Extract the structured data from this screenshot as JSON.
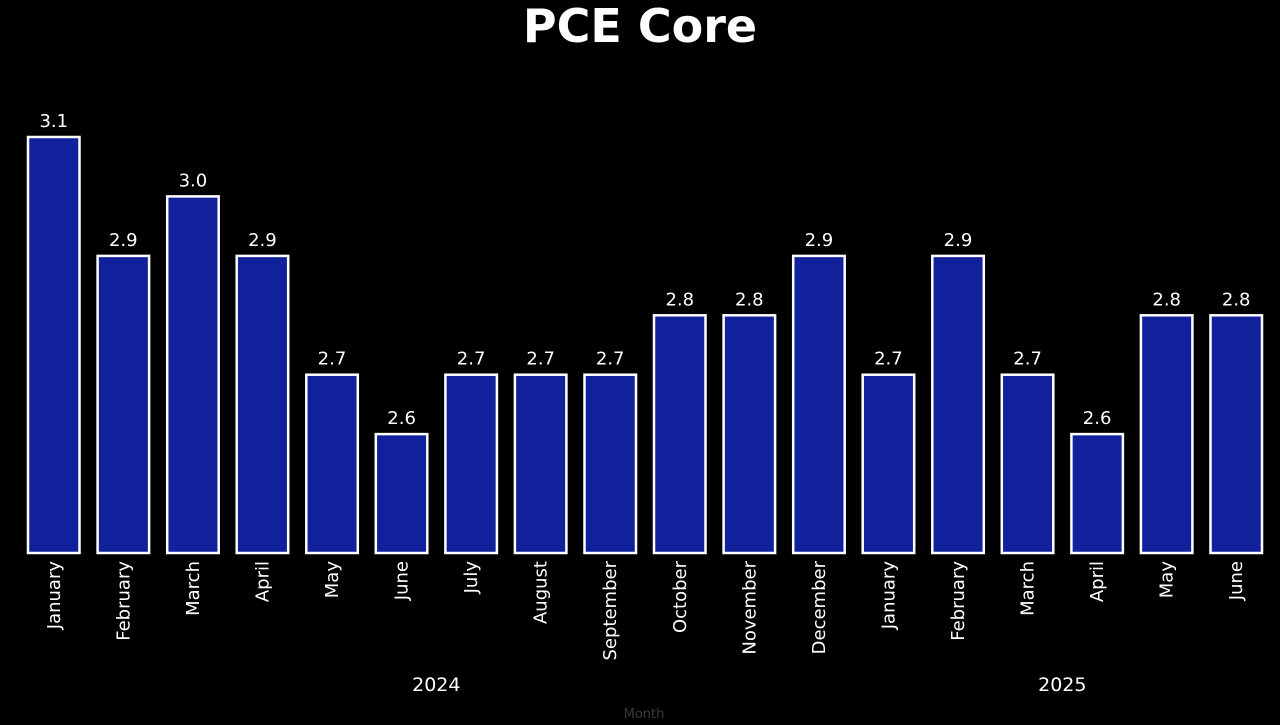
{
  "chart_data": {
    "type": "bar",
    "title": "PCE Core",
    "xlabel": "Month",
    "ylabel": "",
    "ylim": [
      2.4,
      3.1
    ],
    "grid": false,
    "categories": [
      "January",
      "February",
      "March",
      "April",
      "May",
      "June",
      "July",
      "August",
      "September",
      "October",
      "November",
      "December",
      "January",
      "February",
      "March",
      "April",
      "May",
      "June"
    ],
    "values": [
      3.1,
      2.9,
      3.0,
      2.9,
      2.7,
      2.6,
      2.7,
      2.7,
      2.7,
      2.8,
      2.8,
      2.9,
      2.7,
      2.9,
      2.7,
      2.6,
      2.8,
      2.8
    ],
    "value_labels": [
      "3.1",
      "2.9",
      "3.0",
      "2.9",
      "2.7",
      "2.6",
      "2.7",
      "2.7",
      "2.7",
      "2.8",
      "2.8",
      "2.9",
      "2.7",
      "2.9",
      "2.7",
      "2.6",
      "2.8",
      "2.8"
    ],
    "groups": [
      {
        "label": "2024",
        "start": 0,
        "count": 12
      },
      {
        "label": "2025",
        "start": 12,
        "count": 6
      }
    ],
    "bar_color": "#10219b",
    "bar_edge_color": "#ffffff",
    "background": "#000000"
  }
}
